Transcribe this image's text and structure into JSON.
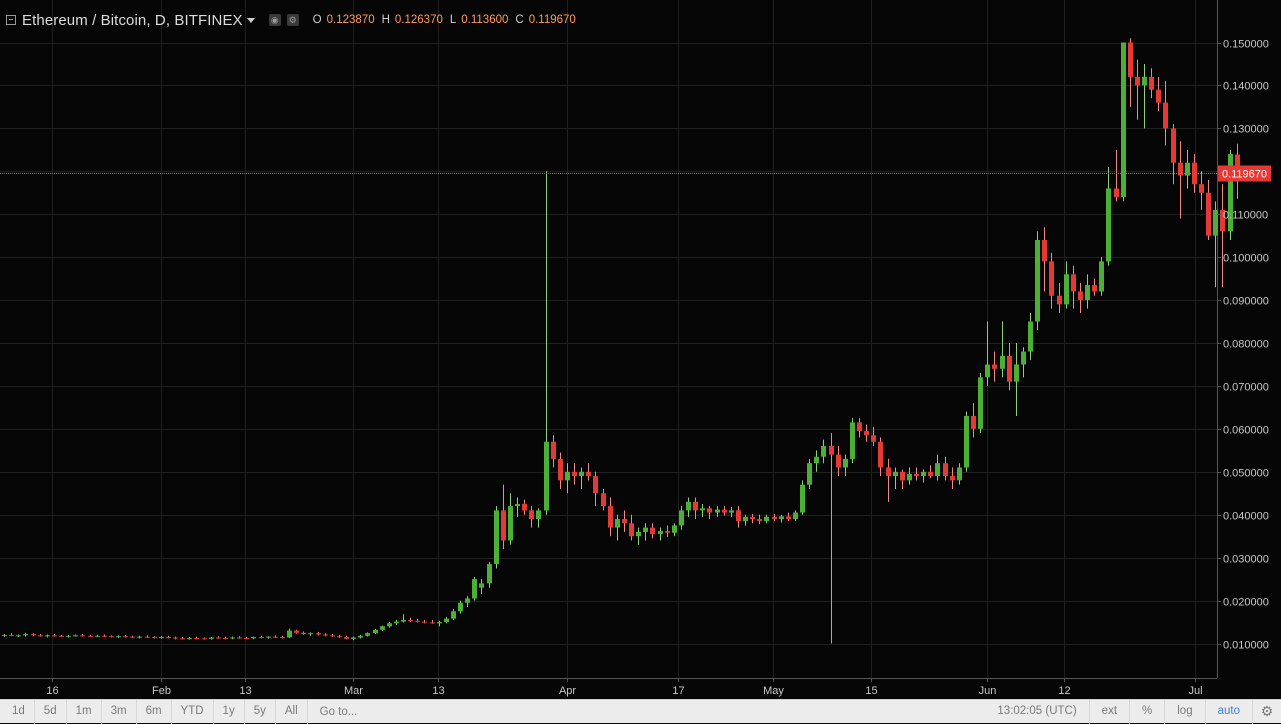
{
  "legend": {
    "symbol": "Ethereum / Bitcoin, D, BITFINEX",
    "o_key": "O",
    "o_val": "0.123870",
    "h_key": "H",
    "h_val": "0.126370",
    "l_key": "L",
    "l_val": "0.113600",
    "c_key": "C",
    "c_val": "0.119670"
  },
  "toolbar": {
    "ranges": [
      "1d",
      "5d",
      "1m",
      "3m",
      "6m",
      "YTD",
      "1y",
      "5y",
      "All"
    ],
    "goto": "Go to...",
    "clock": "13:02:05 (UTC)",
    "ext": "ext",
    "pct": "%",
    "log": "log",
    "auto": "auto"
  },
  "colors": {
    "up": "#4caf36",
    "down": "#e53935",
    "price_line": "#ff3b3b",
    "grid": "#202020",
    "background": "#060606"
  },
  "chart_data": {
    "type": "candlestick",
    "x_tick_labels": [
      "16",
      "Feb",
      "13",
      "Mar",
      "13",
      "Apr",
      "17",
      "May",
      "15",
      "Jun",
      "12",
      "Jul"
    ],
    "y_tick_labels": [
      "0.010000",
      "0.020000",
      "0.030000",
      "0.040000",
      "0.050000",
      "0.060000",
      "0.070000",
      "0.080000",
      "0.090000",
      "0.100000",
      "0.110000",
      "0.120000",
      "0.130000",
      "0.140000",
      "0.150000"
    ],
    "ylim": [
      0.0,
      0.158
    ],
    "last_price": 0.11967,
    "last_price_label": "0.119670",
    "candles": [
      [
        0.0118,
        0.0122,
        0.0115,
        0.012
      ],
      [
        0.012,
        0.0124,
        0.0117,
        0.0118
      ],
      [
        0.0118,
        0.0121,
        0.0115,
        0.0119
      ],
      [
        0.0119,
        0.0125,
        0.0116,
        0.0122
      ],
      [
        0.0122,
        0.0124,
        0.0117,
        0.0119
      ],
      [
        0.0119,
        0.0122,
        0.0116,
        0.0117
      ],
      [
        0.0117,
        0.0121,
        0.0114,
        0.0119
      ],
      [
        0.0119,
        0.0122,
        0.0116,
        0.0118
      ],
      [
        0.0118,
        0.012,
        0.0115,
        0.0117
      ],
      [
        0.0117,
        0.012,
        0.0114,
        0.0118
      ],
      [
        0.0118,
        0.0121,
        0.0116,
        0.0119
      ],
      [
        0.0119,
        0.0122,
        0.0116,
        0.0118
      ],
      [
        0.0118,
        0.012,
        0.0115,
        0.0117
      ],
      [
        0.0117,
        0.012,
        0.0115,
        0.0118
      ],
      [
        0.0118,
        0.0121,
        0.0115,
        0.0117
      ],
      [
        0.0117,
        0.0119,
        0.0114,
        0.0116
      ],
      [
        0.0116,
        0.0119,
        0.0113,
        0.0117
      ],
      [
        0.0117,
        0.012,
        0.0114,
        0.0116
      ],
      [
        0.0116,
        0.0118,
        0.0113,
        0.0115
      ],
      [
        0.0115,
        0.0118,
        0.0112,
        0.0116
      ],
      [
        0.0116,
        0.0119,
        0.0113,
        0.0115
      ],
      [
        0.0115,
        0.0117,
        0.0112,
        0.0114
      ],
      [
        0.0114,
        0.0117,
        0.0111,
        0.0115
      ],
      [
        0.0115,
        0.0118,
        0.0112,
        0.0114
      ],
      [
        0.0114,
        0.0116,
        0.011,
        0.0112
      ],
      [
        0.0112,
        0.0115,
        0.0109,
        0.0111
      ],
      [
        0.0111,
        0.0115,
        0.0109,
        0.0113
      ],
      [
        0.0113,
        0.0116,
        0.011,
        0.0112
      ],
      [
        0.0112,
        0.0114,
        0.0109,
        0.0111
      ],
      [
        0.0111,
        0.0115,
        0.0109,
        0.0114
      ],
      [
        0.0114,
        0.0117,
        0.0111,
        0.0113
      ],
      [
        0.0113,
        0.0116,
        0.011,
        0.0112
      ],
      [
        0.0112,
        0.0116,
        0.011,
        0.0114
      ],
      [
        0.0114,
        0.0117,
        0.0111,
        0.0113
      ],
      [
        0.0113,
        0.0115,
        0.011,
        0.0112
      ],
      [
        0.0112,
        0.0116,
        0.011,
        0.0115
      ],
      [
        0.0115,
        0.0118,
        0.0112,
        0.0114
      ],
      [
        0.0114,
        0.0117,
        0.0111,
        0.0116
      ],
      [
        0.0116,
        0.0119,
        0.0113,
        0.0115
      ],
      [
        0.0115,
        0.0118,
        0.0112,
        0.0114
      ],
      [
        0.0114,
        0.0135,
        0.0113,
        0.013
      ],
      [
        0.013,
        0.0132,
        0.0123,
        0.0125
      ],
      [
        0.0125,
        0.0128,
        0.012,
        0.0122
      ],
      [
        0.0122,
        0.0126,
        0.0118,
        0.0124
      ],
      [
        0.0124,
        0.0127,
        0.0119,
        0.0121
      ],
      [
        0.0121,
        0.0124,
        0.0117,
        0.0119
      ],
      [
        0.0119,
        0.0122,
        0.0115,
        0.0117
      ],
      [
        0.0117,
        0.012,
        0.0113,
        0.0115
      ],
      [
        0.0115,
        0.0118,
        0.011,
        0.0111
      ],
      [
        0.0111,
        0.0116,
        0.0108,
        0.0114
      ],
      [
        0.0114,
        0.012,
        0.0112,
        0.0118
      ],
      [
        0.0118,
        0.0126,
        0.0116,
        0.0124
      ],
      [
        0.0124,
        0.0134,
        0.0122,
        0.0132
      ],
      [
        0.0132,
        0.0142,
        0.0129,
        0.014
      ],
      [
        0.014,
        0.015,
        0.0137,
        0.0147
      ],
      [
        0.0147,
        0.0155,
        0.0143,
        0.0151
      ],
      [
        0.0151,
        0.0168,
        0.0149,
        0.0155
      ],
      [
        0.0155,
        0.016,
        0.015,
        0.0153
      ],
      [
        0.0153,
        0.0158,
        0.0149,
        0.0151
      ],
      [
        0.0151,
        0.0155,
        0.0147,
        0.0149
      ],
      [
        0.0149,
        0.0155,
        0.0146,
        0.0147
      ],
      [
        0.0147,
        0.0153,
        0.014,
        0.015
      ],
      [
        0.015,
        0.0162,
        0.0147,
        0.0158
      ],
      [
        0.0158,
        0.018,
        0.0155,
        0.0175
      ],
      [
        0.0175,
        0.02,
        0.017,
        0.0195
      ],
      [
        0.0195,
        0.021,
        0.0185,
        0.0205
      ],
      [
        0.0205,
        0.0255,
        0.02,
        0.025
      ],
      [
        0.023,
        0.025,
        0.0215,
        0.024
      ],
      [
        0.024,
        0.029,
        0.023,
        0.0285
      ],
      [
        0.0285,
        0.042,
        0.0275,
        0.041
      ],
      [
        0.041,
        0.047,
        0.032,
        0.034
      ],
      [
        0.034,
        0.045,
        0.033,
        0.042
      ],
      [
        0.042,
        0.044,
        0.0395,
        0.0425
      ],
      [
        0.0425,
        0.0435,
        0.04,
        0.041
      ],
      [
        0.041,
        0.042,
        0.037,
        0.039
      ],
      [
        0.039,
        0.0415,
        0.037,
        0.041
      ],
      [
        0.041,
        0.12,
        0.04,
        0.057
      ],
      [
        0.057,
        0.0585,
        0.051,
        0.053
      ],
      [
        0.053,
        0.0545,
        0.046,
        0.048
      ],
      [
        0.048,
        0.052,
        0.045,
        0.05
      ],
      [
        0.05,
        0.052,
        0.047,
        0.049
      ],
      [
        0.049,
        0.051,
        0.046,
        0.05
      ],
      [
        0.05,
        0.052,
        0.048,
        0.049
      ],
      [
        0.049,
        0.05,
        0.042,
        0.045
      ],
      [
        0.045,
        0.046,
        0.041,
        0.042
      ],
      [
        0.042,
        0.044,
        0.035,
        0.037
      ],
      [
        0.037,
        0.04,
        0.034,
        0.039
      ],
      [
        0.039,
        0.041,
        0.036,
        0.038
      ],
      [
        0.038,
        0.04,
        0.034,
        0.035
      ],
      [
        0.035,
        0.037,
        0.033,
        0.036
      ],
      [
        0.036,
        0.038,
        0.034,
        0.037
      ],
      [
        0.037,
        0.038,
        0.0345,
        0.0355
      ],
      [
        0.0355,
        0.037,
        0.034,
        0.0362
      ],
      [
        0.0362,
        0.0375,
        0.0348,
        0.0358
      ],
      [
        0.0358,
        0.038,
        0.035,
        0.0375
      ],
      [
        0.0375,
        0.042,
        0.0365,
        0.041
      ],
      [
        0.041,
        0.044,
        0.0395,
        0.043
      ],
      [
        0.043,
        0.044,
        0.039,
        0.041
      ],
      [
        0.041,
        0.0425,
        0.0395,
        0.0415
      ],
      [
        0.0415,
        0.042,
        0.039,
        0.0405
      ],
      [
        0.0405,
        0.042,
        0.0395,
        0.0412
      ],
      [
        0.0412,
        0.042,
        0.0398,
        0.0405
      ],
      [
        0.0405,
        0.0418,
        0.0395,
        0.041
      ],
      [
        0.041,
        0.042,
        0.037,
        0.0385
      ],
      [
        0.0385,
        0.04,
        0.0375,
        0.0395
      ],
      [
        0.0395,
        0.0402,
        0.038,
        0.039
      ],
      [
        0.039,
        0.04,
        0.0378,
        0.0385
      ],
      [
        0.0385,
        0.04,
        0.038,
        0.0395
      ],
      [
        0.0395,
        0.0402,
        0.0385,
        0.039
      ],
      [
        0.039,
        0.04,
        0.0382,
        0.0396
      ],
      [
        0.0396,
        0.0405,
        0.0385,
        0.039
      ],
      [
        0.039,
        0.041,
        0.0385,
        0.0405
      ],
      [
        0.0405,
        0.048,
        0.04,
        0.047
      ],
      [
        0.047,
        0.053,
        0.046,
        0.052
      ],
      [
        0.052,
        0.055,
        0.05,
        0.0535
      ],
      [
        0.0535,
        0.0575,
        0.052,
        0.056
      ],
      [
        0.056,
        0.059,
        0.01,
        0.054
      ],
      [
        0.054,
        0.056,
        0.049,
        0.051
      ],
      [
        0.051,
        0.054,
        0.049,
        0.053
      ],
      [
        0.053,
        0.0625,
        0.052,
        0.0615
      ],
      [
        0.0615,
        0.0625,
        0.058,
        0.0595
      ],
      [
        0.0595,
        0.061,
        0.057,
        0.0585
      ],
      [
        0.0585,
        0.0605,
        0.056,
        0.057
      ],
      [
        0.057,
        0.058,
        0.049,
        0.051
      ],
      [
        0.051,
        0.053,
        0.043,
        0.049
      ],
      [
        0.049,
        0.051,
        0.046,
        0.05
      ],
      [
        0.05,
        0.0505,
        0.046,
        0.048
      ],
      [
        0.048,
        0.051,
        0.047,
        0.0495
      ],
      [
        0.0495,
        0.051,
        0.048,
        0.049
      ],
      [
        0.049,
        0.0505,
        0.0475,
        0.05
      ],
      [
        0.05,
        0.0515,
        0.0485,
        0.049
      ],
      [
        0.049,
        0.054,
        0.048,
        0.052
      ],
      [
        0.052,
        0.0535,
        0.048,
        0.049
      ],
      [
        0.049,
        0.051,
        0.046,
        0.048
      ],
      [
        0.048,
        0.052,
        0.047,
        0.051
      ],
      [
        0.051,
        0.064,
        0.05,
        0.063
      ],
      [
        0.063,
        0.066,
        0.058,
        0.06
      ],
      [
        0.06,
        0.073,
        0.059,
        0.072
      ],
      [
        0.072,
        0.085,
        0.07,
        0.075
      ],
      [
        0.075,
        0.078,
        0.071,
        0.074
      ],
      [
        0.074,
        0.085,
        0.072,
        0.077
      ],
      [
        0.077,
        0.08,
        0.069,
        0.071
      ],
      [
        0.071,
        0.08,
        0.063,
        0.075
      ],
      [
        0.075,
        0.079,
        0.072,
        0.078
      ],
      [
        0.078,
        0.087,
        0.076,
        0.085
      ],
      [
        0.085,
        0.106,
        0.083,
        0.104
      ],
      [
        0.104,
        0.107,
        0.092,
        0.099
      ],
      [
        0.099,
        0.101,
        0.088,
        0.091
      ],
      [
        0.091,
        0.094,
        0.087,
        0.089
      ],
      [
        0.089,
        0.099,
        0.088,
        0.096
      ],
      [
        0.096,
        0.098,
        0.088,
        0.092
      ],
      [
        0.092,
        0.094,
        0.087,
        0.09
      ],
      [
        0.09,
        0.096,
        0.088,
        0.0935
      ],
      [
        0.0935,
        0.095,
        0.091,
        0.092
      ],
      [
        0.092,
        0.1,
        0.091,
        0.099
      ],
      [
        0.099,
        0.121,
        0.098,
        0.116
      ],
      [
        0.116,
        0.125,
        0.113,
        0.114
      ],
      [
        0.114,
        0.15,
        0.113,
        0.15
      ],
      [
        0.15,
        0.151,
        0.135,
        0.142
      ],
      [
        0.142,
        0.146,
        0.132,
        0.14
      ],
      [
        0.14,
        0.145,
        0.13,
        0.142
      ],
      [
        0.142,
        0.144,
        0.137,
        0.139
      ],
      [
        0.139,
        0.142,
        0.134,
        0.136
      ],
      [
        0.136,
        0.141,
        0.126,
        0.13
      ],
      [
        0.13,
        0.131,
        0.117,
        0.122
      ],
      [
        0.122,
        0.127,
        0.109,
        0.119
      ],
      [
        0.119,
        0.125,
        0.116,
        0.122
      ],
      [
        0.122,
        0.124,
        0.115,
        0.117
      ],
      [
        0.117,
        0.12,
        0.111,
        0.115
      ],
      [
        0.115,
        0.118,
        0.104,
        0.105
      ],
      [
        0.105,
        0.113,
        0.093,
        0.111
      ],
      [
        0.111,
        0.117,
        0.093,
        0.106
      ],
      [
        0.106,
        0.125,
        0.104,
        0.124
      ],
      [
        0.1239,
        0.1264,
        0.1136,
        0.1197
      ]
    ]
  }
}
